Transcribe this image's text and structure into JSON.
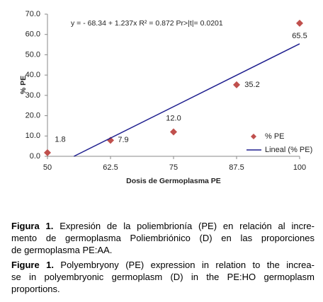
{
  "chart_data": {
    "type": "scatter",
    "equation": "y = - 68.34  + 1.237x     R² = 0.872    Pr>|t|= 0.0201",
    "xlabel": "Dosis de Germoplasma PE",
    "ylabel": "% PE",
    "xlim": [
      50,
      100
    ],
    "xticks": [
      50,
      62.5,
      75,
      87.5,
      100
    ],
    "ylim": [
      0,
      70
    ],
    "yticks": [
      {
        "value": 0,
        "label": "0.0"
      },
      {
        "value": 10,
        "label": "10.0"
      },
      {
        "value": 20,
        "label": "20.0"
      },
      {
        "value": 30,
        "label": "30.0"
      },
      {
        "value": 40,
        "label": "40.0"
      },
      {
        "value": 50,
        "label": "50.0"
      },
      {
        "value": 60,
        "label": "60.0"
      },
      {
        "value": 70,
        "label": "70.0"
      }
    ],
    "series": [
      {
        "name": "% PE",
        "type": "scatter",
        "color": "#c0504d",
        "x": [
          50,
          62.5,
          75,
          87.5,
          100
        ],
        "values": [
          1.8,
          7.9,
          12.0,
          35.2,
          65.5
        ],
        "value_labels": [
          "1.8",
          "7.9",
          "12.0",
          "35.2",
          "65.5"
        ]
      },
      {
        "name": "Lineal (% PE)",
        "type": "line",
        "color": "#1f1f8f",
        "x": [
          55.25,
          100
        ],
        "values": [
          0,
          55.4
        ]
      }
    ]
  },
  "captions": [
    {
      "label": "Figura 1.",
      "lines": [
        "Expresión de la poliembrionía (PE) en relación al incre-",
        "mento de germoplasma Poliembriónico (D) en las proporciones",
        "de germoplasma PE:AA."
      ]
    },
    {
      "label": "Figure 1.",
      "lines": [
        "Polyembryony (PE) expression in relation to the increa-",
        "se in polyembryonic germoplasm (D) in the PE:HO germoplasm",
        "proportions."
      ]
    }
  ]
}
